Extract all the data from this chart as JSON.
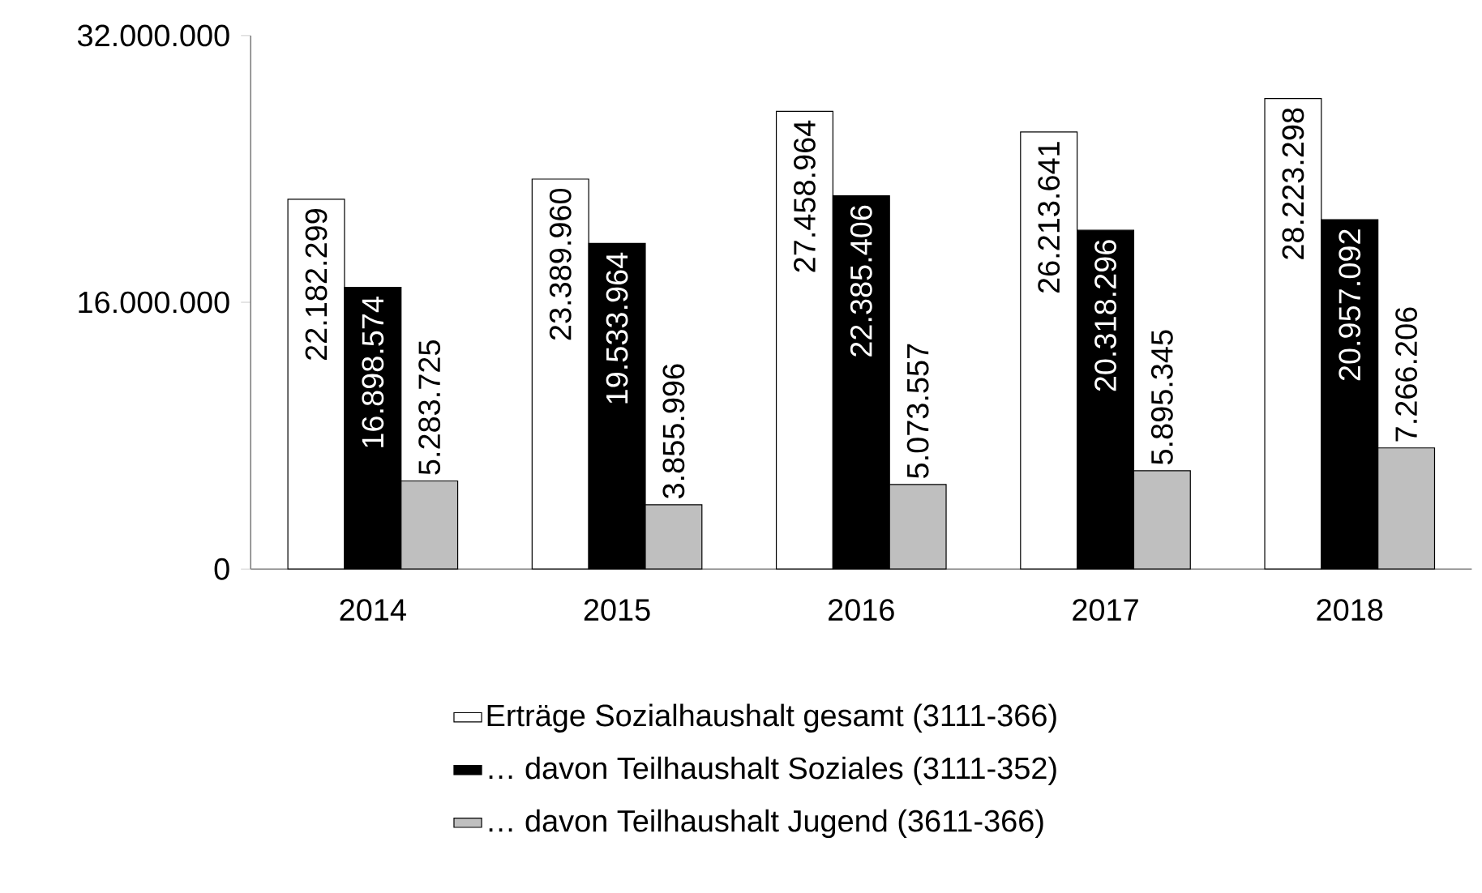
{
  "chart_data": {
    "type": "bar",
    "categories": [
      "2014",
      "2015",
      "2016",
      "2017",
      "2018"
    ],
    "series": [
      {
        "name": "Erträge Sozialhaushalt gesamt (3111-366)",
        "color": "#ffffff",
        "values": [
          22182299,
          23389960,
          27458964,
          26213641,
          28223298
        ],
        "value_labels": [
          "22.182.299",
          "23.389.960",
          "27.458.964",
          "26.213.641",
          "28.223.298"
        ]
      },
      {
        "name": "… davon Teilhaushalt Soziales (3111-352)",
        "color": "#000000",
        "values": [
          16898574,
          19533964,
          22385406,
          20318296,
          20957092
        ],
        "value_labels": [
          "16.898.574",
          "19.533.964",
          "22.385.406",
          "20.318.296",
          "20.957.092"
        ]
      },
      {
        "name": "… davon Teilhaushalt Jugend (3611-366)",
        "color": "#bfbfbf",
        "values": [
          5283725,
          3855996,
          5073557,
          5895345,
          7266206
        ],
        "value_labels": [
          "5.283.725",
          "3.855.996",
          "5.073.557",
          "5.895.345",
          "7.266.206"
        ]
      }
    ],
    "ylim": [
      0,
      32000000
    ],
    "yticks": [
      {
        "value": 0,
        "label": "0"
      },
      {
        "value": 16000000,
        "label": "16.000.000"
      },
      {
        "value": 32000000,
        "label": "32.000.000"
      }
    ],
    "grid": false,
    "legend": "bottom"
  }
}
